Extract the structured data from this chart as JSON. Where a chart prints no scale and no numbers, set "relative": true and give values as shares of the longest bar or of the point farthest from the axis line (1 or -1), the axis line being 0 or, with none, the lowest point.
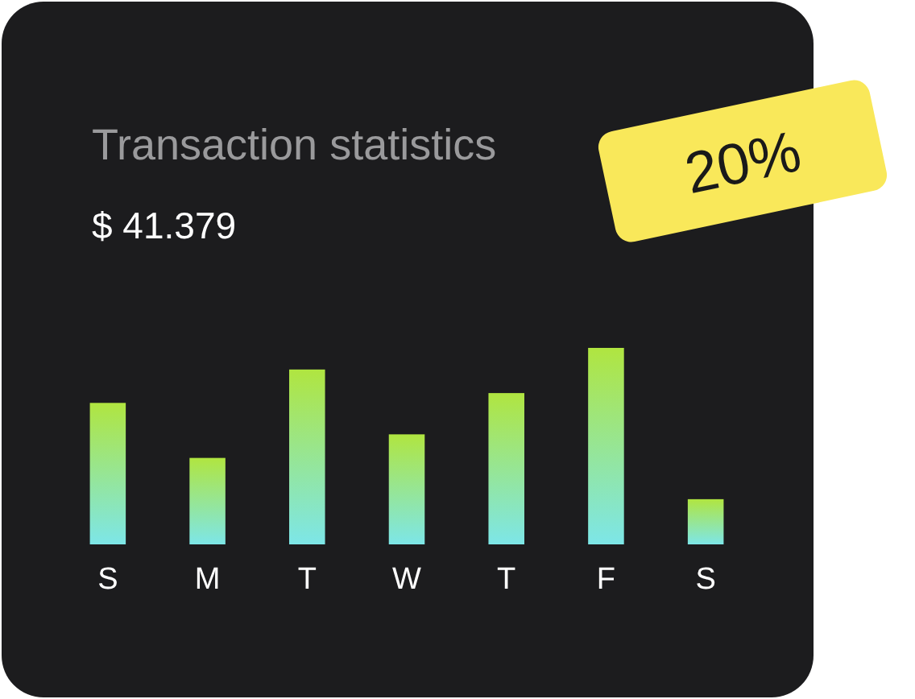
{
  "chart_data": {
    "type": "bar",
    "title": "Transaction statistics",
    "subtitle": "$ 41.379",
    "annotations": [
      "20%"
    ],
    "categories": [
      "S",
      "M",
      "T",
      "W",
      "T",
      "F",
      "S"
    ],
    "relative": true,
    "series": [
      {
        "color": "#b0e540",
        "values": [
          0.72,
          0.44,
          0.89,
          0.56,
          0.77,
          1,
          0.23
        ]
      }
    ]
  }
}
